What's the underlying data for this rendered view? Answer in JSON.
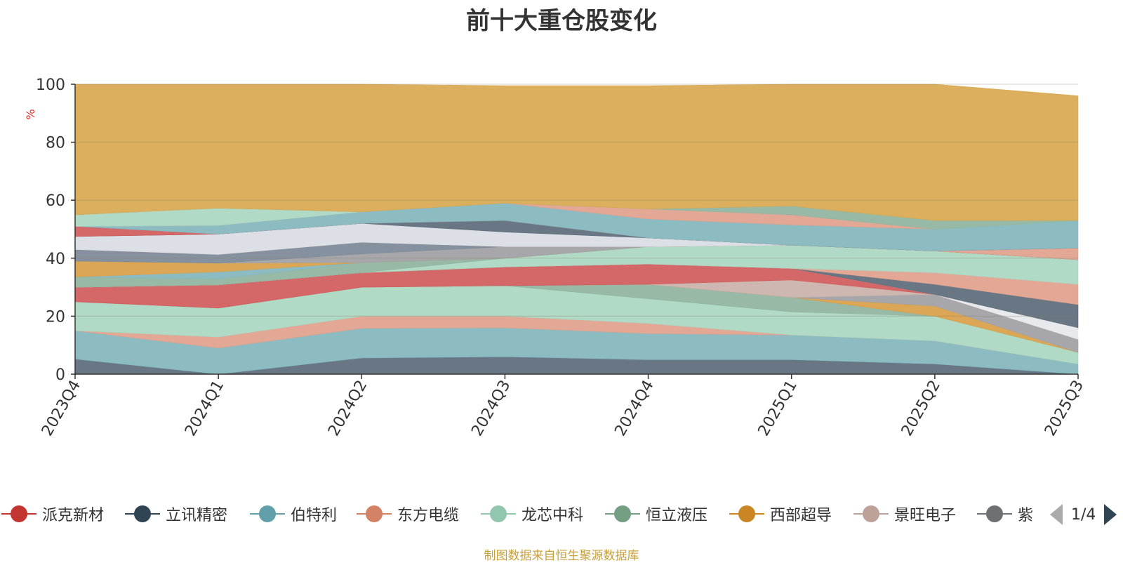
{
  "title": "前十大重仓股变化",
  "source_note": "制图数据来自恒生聚源数据库",
  "pager": {
    "label": "1/4"
  },
  "legend_items": [
    {
      "name": "派克新材",
      "color": "#c23531"
    },
    {
      "name": "立讯精密",
      "color": "#2f4554"
    },
    {
      "name": "伯特利",
      "color": "#61a0a8"
    },
    {
      "name": "东方电缆",
      "color": "#d48265"
    },
    {
      "name": "龙芯中科",
      "color": "#91c7ae"
    },
    {
      "name": "恒立液压",
      "color": "#749f83"
    },
    {
      "name": "西部超导",
      "color": "#ca8622"
    },
    {
      "name": "景旺电子",
      "color": "#bda29a"
    },
    {
      "name": "紫",
      "color": "#6e7074"
    }
  ],
  "chart_data": {
    "type": "area",
    "stacked": true,
    "categories": [
      "2023Q4",
      "2024Q1",
      "2024Q2",
      "2024Q3",
      "2024Q4",
      "2025Q1",
      "2025Q2",
      "2025Q3"
    ],
    "ylabel": "%",
    "ylim": [
      0,
      100
    ],
    "yticks": [
      0,
      20,
      40,
      60,
      80,
      100
    ],
    "grid": true,
    "bands": [
      {
        "color": "#5c6b7a",
        "values": [
          5.2,
          0,
          5.6,
          6,
          5,
          5,
          3.5,
          0
        ]
      },
      {
        "color": "#82b6bd",
        "values": [
          9.8,
          9,
          10.2,
          10,
          9,
          8.5,
          8,
          3.5
        ]
      },
      {
        "color": "#e0a08c",
        "values": [
          0,
          3.8,
          4.2,
          4,
          3.5,
          0,
          0,
          0
        ]
      },
      {
        "color": "#a9d6c1",
        "values": [
          10,
          10,
          10,
          10.5,
          8.5,
          8,
          8.5,
          4
        ]
      },
      {
        "color": "#8fb39e",
        "values": [
          0,
          0,
          0,
          0,
          5,
          5,
          0,
          0
        ]
      },
      {
        "color": "#d8a048",
        "values": [
          0,
          0,
          0,
          0,
          0,
          0,
          3.5,
          0
        ]
      },
      {
        "color": "#a0a0a4",
        "values": [
          0,
          0,
          0,
          0,
          0,
          0,
          4,
          4.5
        ]
      },
      {
        "color": "#c9b1a9",
        "values": [
          0,
          0,
          0,
          0,
          0,
          6,
          0,
          0
        ]
      },
      {
        "color": "#d05a5a",
        "values": [
          5,
          8,
          5,
          6.5,
          7,
          4,
          0,
          0
        ]
      },
      {
        "color": "#e5e7ec",
        "values": [
          0,
          0,
          0,
          0,
          0,
          0,
          0,
          4
        ]
      },
      {
        "color": "#5c6b7a",
        "values": [
          0,
          0,
          0,
          0,
          0,
          0,
          3.5,
          8
        ]
      },
      {
        "color": "#e0a08c",
        "values": [
          0,
          0,
          0,
          0,
          0,
          0,
          4,
          7
        ]
      },
      {
        "color": "#a9d6c1",
        "values": [
          0,
          0,
          0,
          3,
          6,
          8,
          7.5,
          8.5
        ]
      },
      {
        "color": "#8fb39e",
        "values": [
          3.5,
          2,
          3.5,
          0,
          0,
          0,
          0,
          0
        ]
      },
      {
        "color": "#82b6bd",
        "values": [
          0,
          2.5,
          0,
          0,
          0,
          0,
          0,
          0
        ]
      },
      {
        "color": "#d8a048",
        "values": [
          5.5,
          3,
          0,
          0,
          0,
          0,
          0,
          0
        ]
      },
      {
        "color": "#a0a0a4",
        "values": [
          0,
          0,
          3,
          4,
          0,
          0,
          0,
          0
        ]
      },
      {
        "color": "#7b8896",
        "values": [
          4,
          3,
          4,
          0,
          0,
          0,
          0,
          0
        ]
      },
      {
        "color": "#e0a08c",
        "values": [
          0,
          0,
          0,
          0,
          0,
          0,
          0,
          4
        ]
      },
      {
        "color": "#d9dce3",
        "values": [
          4.5,
          7,
          6.5,
          5,
          3,
          0,
          0,
          0
        ]
      },
      {
        "color": "#5c6b7a",
        "values": [
          0,
          0,
          0,
          4,
          0,
          0,
          0,
          0
        ]
      },
      {
        "color": "#d05a5a",
        "values": [
          3.5,
          0,
          0,
          0,
          0,
          0,
          0,
          0
        ]
      },
      {
        "color": "#82b6bd",
        "values": [
          0,
          3,
          4,
          6,
          6.5,
          7,
          7.5,
          9.5
        ]
      },
      {
        "color": "#e0a08c",
        "values": [
          0,
          0,
          0,
          0,
          3.5,
          3.5,
          0,
          0
        ]
      },
      {
        "color": "#a9d6c1",
        "values": [
          4,
          6,
          0,
          0,
          0,
          0,
          0,
          0
        ]
      },
      {
        "color": "#8fb39e",
        "values": [
          0,
          0,
          0,
          0,
          0,
          3,
          3,
          0
        ]
      },
      {
        "color": "#d8a84f",
        "values": [
          45,
          42.7,
          44,
          40.5,
          42.5,
          42,
          47,
          43
        ]
      }
    ]
  }
}
